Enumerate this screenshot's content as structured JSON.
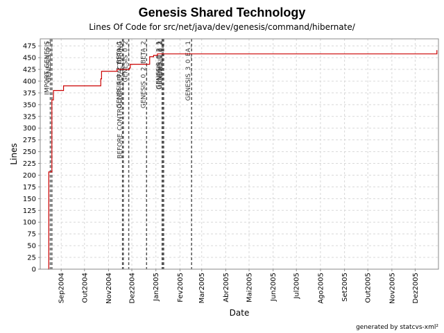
{
  "chart_data": {
    "type": "line",
    "title": "Genesis Shared Technology",
    "subtitle": "Lines Of Code for src/net/java/dev/genesis/command/hibernate/",
    "xlabel": "Date",
    "ylabel": "Lines",
    "footer": "generated by statcvs-xml²",
    "ylim": [
      0,
      490
    ],
    "yticks": [
      0,
      25,
      50,
      75,
      100,
      125,
      150,
      175,
      200,
      225,
      250,
      275,
      300,
      325,
      350,
      375,
      400,
      425,
      450,
      475
    ],
    "xlim": [
      "2004-08-05",
      "2005-12-31"
    ],
    "xticks": [
      {
        "date": "2004-09-01",
        "label": "Sep2004"
      },
      {
        "date": "2004-10-01",
        "label": "Out2004"
      },
      {
        "date": "2004-11-01",
        "label": "Nov2004"
      },
      {
        "date": "2004-12-01",
        "label": "Dez2004"
      },
      {
        "date": "2005-01-01",
        "label": "Jan2005"
      },
      {
        "date": "2005-02-01",
        "label": "Fev2005"
      },
      {
        "date": "2005-03-01",
        "label": "Mar2005"
      },
      {
        "date": "2005-04-01",
        "label": "Abr2005"
      },
      {
        "date": "2005-05-01",
        "label": "Mai2005"
      },
      {
        "date": "2005-06-01",
        "label": "Jun2005"
      },
      {
        "date": "2005-07-01",
        "label": "Jul2005"
      },
      {
        "date": "2005-08-01",
        "label": "Ago2005"
      },
      {
        "date": "2005-09-01",
        "label": "Set2005"
      },
      {
        "date": "2005-10-01",
        "label": "Out2005"
      },
      {
        "date": "2005-11-01",
        "label": "Nov2005"
      },
      {
        "date": "2005-12-01",
        "label": "Dez2005"
      }
    ],
    "grid": true,
    "series": [
      {
        "color": "#cc0000",
        "step": true,
        "points": [
          {
            "x": "2004-08-15",
            "y": 0
          },
          {
            "x": "2004-08-16",
            "y": 207
          },
          {
            "x": "2004-08-20",
            "y": 360
          },
          {
            "x": "2004-08-22",
            "y": 380
          },
          {
            "x": "2004-09-03",
            "y": 380
          },
          {
            "x": "2004-09-04",
            "y": 390
          },
          {
            "x": "2004-10-20",
            "y": 390
          },
          {
            "x": "2004-10-22",
            "y": 405
          },
          {
            "x": "2004-10-23",
            "y": 421
          },
          {
            "x": "2004-11-11",
            "y": 421
          },
          {
            "x": "2004-11-12",
            "y": 425
          },
          {
            "x": "2004-11-28",
            "y": 428
          },
          {
            "x": "2004-11-29",
            "y": 436
          },
          {
            "x": "2004-12-23",
            "y": 436
          },
          {
            "x": "2004-12-24",
            "y": 452
          },
          {
            "x": "2004-12-29",
            "y": 455
          },
          {
            "x": "2005-01-03",
            "y": 458
          },
          {
            "x": "2005-12-28",
            "y": 458
          },
          {
            "x": "2005-12-29",
            "y": 466
          }
        ]
      }
    ],
    "markers": [
      {
        "date": "2004-08-18",
        "label": "IMPORT_GENESIS"
      },
      {
        "date": "2004-08-20",
        "label": "GENESIS_0_1"
      },
      {
        "date": "2004-11-19",
        "label": "GENESIS_0_2_BETA_1"
      },
      {
        "date": "2004-11-20",
        "label": "BEFORE_CONTROLLER_REFACTORING"
      },
      {
        "date": "2004-11-27",
        "label": "GENESIS_0_2"
      },
      {
        "date": "2004-12-20",
        "label": "GENESIS_0_2_BETA_2"
      },
      {
        "date": "2005-01-09",
        "label": "GENESIS_0_2_1"
      },
      {
        "date": "2005-01-10",
        "label": "GENESIS_0_2_2"
      },
      {
        "date": "2005-01-11",
        "label": "GENESIS_0_3"
      },
      {
        "date": "2005-02-16",
        "label": "GENESIS_3_0_EA_1"
      }
    ]
  }
}
